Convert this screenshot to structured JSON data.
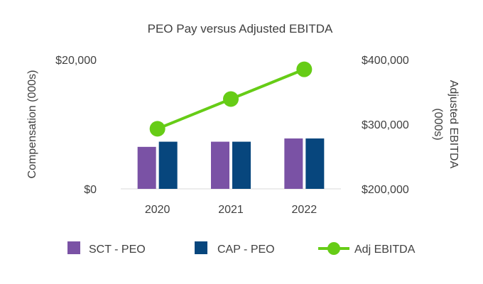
{
  "chart_data": {
    "type": "bar",
    "title": "PEO Pay versus Adjusted EBITDA",
    "categories": [
      "2020",
      "2021",
      "2022"
    ],
    "y_left": {
      "label": "Compensation (000s)",
      "range": [
        0,
        20000
      ],
      "ticks": [
        {
          "value": 0,
          "label": "$0"
        },
        {
          "value": 20000,
          "label": "$20,000"
        }
      ]
    },
    "y_right": {
      "label_lines": [
        "Adjusted EBITDA",
        "(000s)"
      ],
      "range": [
        200000,
        400000
      ],
      "ticks": [
        {
          "value": 200000,
          "label": "$200,000"
        },
        {
          "value": 300000,
          "label": "$300,000"
        },
        {
          "value": 400000,
          "label": "$400,000"
        }
      ]
    },
    "series": [
      {
        "name": "SCT - PEO",
        "kind": "bar",
        "axis": "left",
        "color": "#7a52a5",
        "values": [
          6500,
          7300,
          7800
        ]
      },
      {
        "name": "CAP - PEO",
        "kind": "bar",
        "axis": "left",
        "color": "#07467d",
        "values": [
          7300,
          7300,
          7800
        ]
      },
      {
        "name": "Adj EBITDA",
        "kind": "line",
        "axis": "right",
        "color": "#66cc16",
        "values": [
          293000,
          339000,
          385000
        ]
      }
    ],
    "legend_position": "bottom",
    "grid": false
  }
}
